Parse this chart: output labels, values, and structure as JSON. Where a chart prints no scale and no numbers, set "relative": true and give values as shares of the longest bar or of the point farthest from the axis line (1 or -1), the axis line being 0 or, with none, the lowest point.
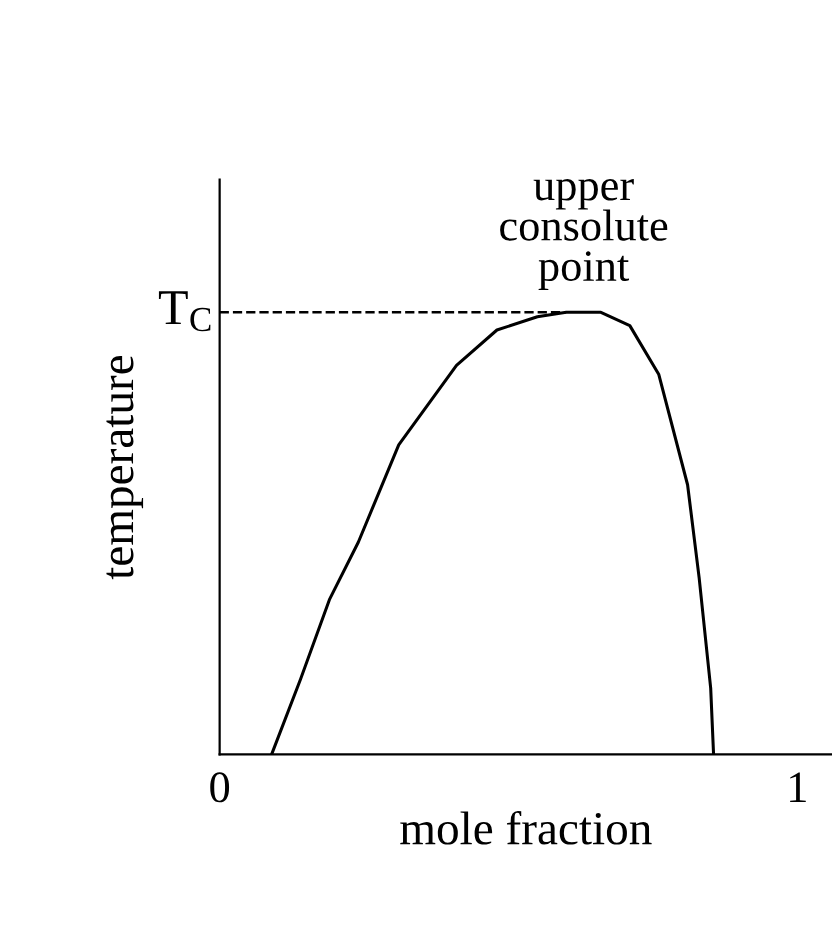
{
  "chart_data": {
    "type": "line",
    "relative": true,
    "xlabel": "mole fraction",
    "ylabel": "temperature",
    "xlim": [
      0,
      1.06
    ],
    "xticks": [
      0,
      1
    ],
    "grid": false,
    "marker": "none",
    "line_style": "solid",
    "x": [
      0.09,
      0.14,
      0.19,
      0.24,
      0.31,
      0.41,
      0.48,
      0.55,
      0.6,
      0.66,
      0.71,
      0.76,
      0.81,
      0.83,
      0.85,
      0.855
    ],
    "series": [
      {
        "color": "#000000",
        "values": [
          0,
          0.17,
          0.35,
          0.48,
          0.7,
          0.88,
          0.96,
          0.99,
          1,
          1,
          0.97,
          0.86,
          0.61,
          0.4,
          0.15,
          0
        ]
      }
    ],
    "ref_lines": [
      {
        "axis": "y",
        "value": 1,
        "label": "T$_{C}$",
        "color": "#000000",
        "line_style": "dashed"
      }
    ],
    "annotations": [
      {
        "text": "upper\nconsolute\npoint",
        "x": 0.63,
        "y": 1
      }
    ]
  }
}
